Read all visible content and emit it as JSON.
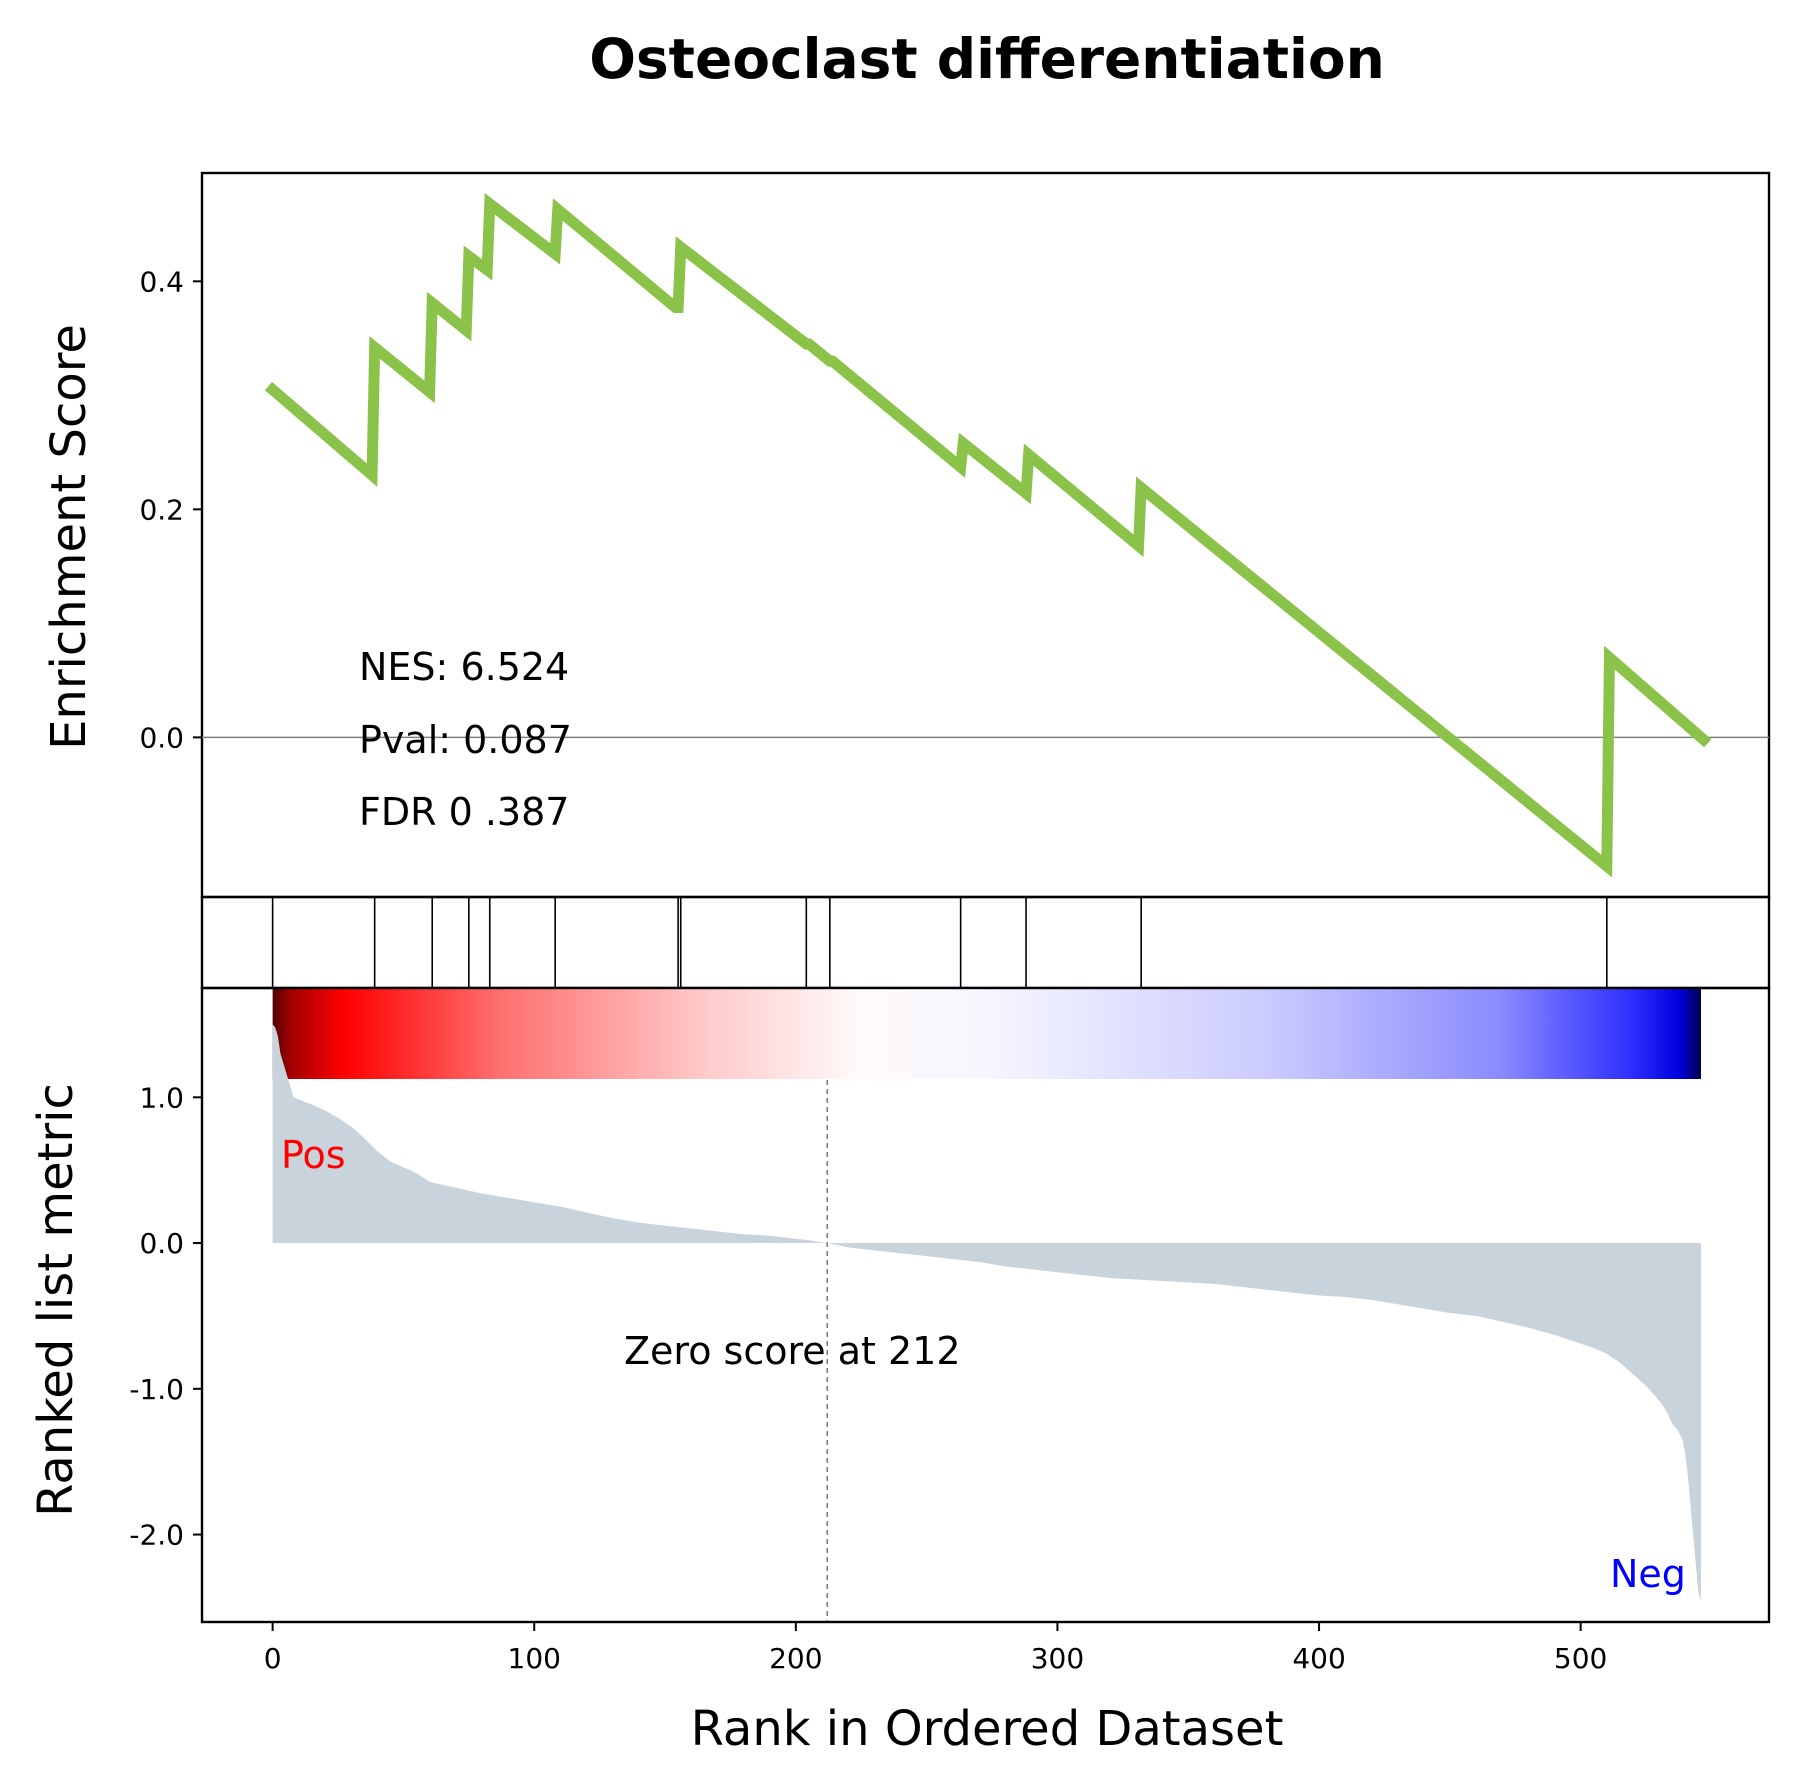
{
  "title": "Osteoclast differentiation",
  "chart_data": [
    {
      "type": "line",
      "panel": "enrichment",
      "ylabel": "Enrichment Score",
      "xlim": [
        -27,
        572
      ],
      "ylim": [
        -0.14,
        0.495
      ],
      "yticks": [
        0.0,
        0.2,
        0.4
      ],
      "ytick_labels": [
        "0.0",
        "0.2",
        "0.4"
      ],
      "zero_line": 0.0,
      "color": "#8bc34a",
      "x": [
        0,
        38,
        39,
        60,
        61,
        74,
        75,
        82,
        83,
        108,
        109,
        154,
        155,
        156,
        204,
        205,
        213,
        214,
        263,
        264,
        288,
        289,
        331,
        332,
        510,
        511,
        547
      ],
      "y": [
        0.305,
        0.23,
        0.342,
        0.303,
        0.381,
        0.357,
        0.422,
        0.41,
        0.468,
        0.424,
        0.463,
        0.377,
        0.377,
        0.43,
        0.345,
        0.345,
        0.33,
        0.33,
        0.237,
        0.258,
        0.214,
        0.248,
        0.168,
        0.219,
        -0.113,
        0.07,
        -0.002
      ],
      "annotations": [
        "NES: 6.524",
        "Pval: 0.087",
        "FDR 0 .387"
      ]
    },
    {
      "type": "bar",
      "panel": "hits",
      "hit_positions": [
        0,
        39,
        61,
        75,
        83,
        108,
        155,
        156,
        204,
        213,
        263,
        288,
        332,
        510
      ]
    },
    {
      "type": "heatmap",
      "panel": "rank-colorbar",
      "colormap": "seismic",
      "x_range": [
        0,
        546
      ]
    },
    {
      "type": "area",
      "panel": "ranked-metric",
      "xlabel": "Rank in Ordered Dataset",
      "ylabel": "Ranked list metric",
      "xlim": [
        -27,
        572
      ],
      "ylim": [
        -2.6,
        1.75
      ],
      "xticks": [
        0,
        100,
        200,
        300,
        400,
        500
      ],
      "xtick_labels": [
        "0",
        "100",
        "200",
        "300",
        "400",
        "500"
      ],
      "yticks": [
        1.0,
        0.0,
        -1.0,
        -2.0
      ],
      "ytick_labels": [
        "1.0",
        "0.0",
        "-1.0",
        "-2.0"
      ],
      "fill_color": "#c8d3dc",
      "zero_cross": 212,
      "zero_cross_label": "Zero score at 212",
      "pos_label": "Pos",
      "neg_label": "Neg",
      "pos_color": "#ff0000",
      "neg_color": "#0000ff",
      "x": [
        0,
        1,
        2,
        3,
        8,
        15,
        20,
        25,
        30,
        35,
        40,
        45,
        50,
        55,
        60,
        65,
        70,
        75,
        80,
        90,
        100,
        110,
        120,
        130,
        140,
        150,
        160,
        170,
        180,
        190,
        200,
        205,
        212,
        220,
        230,
        240,
        250,
        260,
        270,
        280,
        290,
        300,
        310,
        320,
        330,
        340,
        350,
        360,
        370,
        380,
        390,
        400,
        410,
        420,
        430,
        440,
        450,
        460,
        470,
        480,
        490,
        500,
        505,
        510,
        515,
        520,
        525,
        530,
        533,
        535,
        537,
        539,
        540,
        541,
        542,
        543,
        544,
        545,
        546
      ],
      "y": [
        1.5,
        1.48,
        1.42,
        1.3,
        1.0,
        0.95,
        0.91,
        0.86,
        0.8,
        0.72,
        0.63,
        0.56,
        0.52,
        0.48,
        0.42,
        0.4,
        0.38,
        0.36,
        0.34,
        0.31,
        0.28,
        0.25,
        0.21,
        0.17,
        0.14,
        0.12,
        0.1,
        0.08,
        0.06,
        0.05,
        0.03,
        0.02,
        0.0,
        -0.03,
        -0.05,
        -0.07,
        -0.09,
        -0.11,
        -0.13,
        -0.16,
        -0.18,
        -0.2,
        -0.22,
        -0.24,
        -0.25,
        -0.26,
        -0.27,
        -0.28,
        -0.3,
        -0.32,
        -0.34,
        -0.36,
        -0.37,
        -0.39,
        -0.42,
        -0.45,
        -0.48,
        -0.5,
        -0.54,
        -0.58,
        -0.63,
        -0.69,
        -0.72,
        -0.76,
        -0.82,
        -0.9,
        -0.98,
        -1.08,
        -1.16,
        -1.24,
        -1.28,
        -1.35,
        -1.45,
        -1.6,
        -1.8,
        -2.0,
        -2.2,
        -2.4,
        -2.45
      ]
    }
  ]
}
